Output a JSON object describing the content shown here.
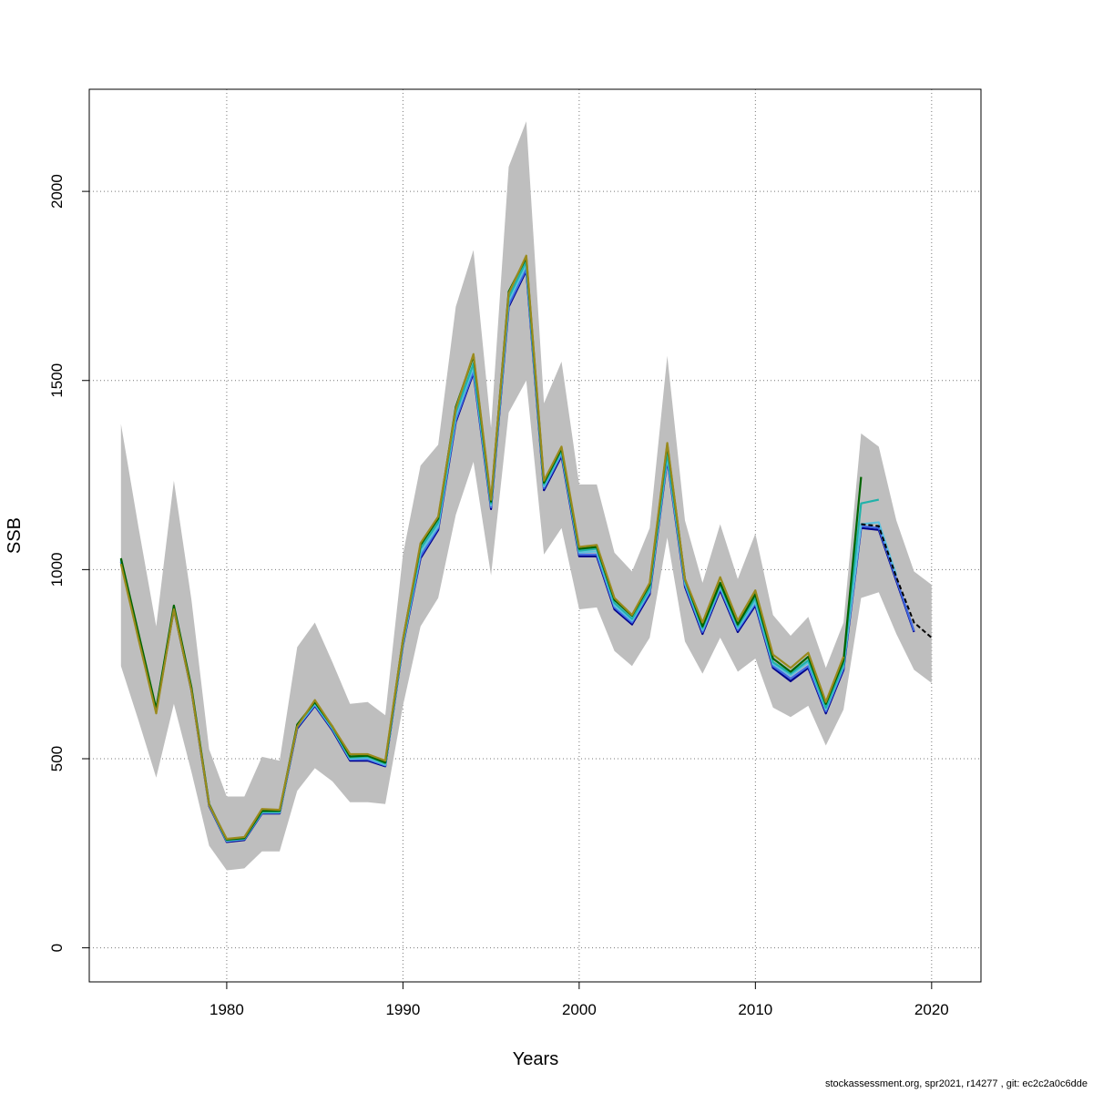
{
  "chart_data": {
    "type": "line",
    "xlabel": "Years",
    "ylabel": "SSB",
    "xlim": [
      1972.2,
      2022.8
    ],
    "ylim": [
      -90,
      2270
    ],
    "x_ticks": [
      1980,
      1990,
      2000,
      2010,
      2020
    ],
    "y_ticks": [
      0,
      500,
      1000,
      1500,
      2000
    ],
    "grid": true,
    "confidence_band": {
      "x": [
        1974,
        1975,
        1976,
        1977,
        1978,
        1979,
        1980,
        1981,
        1982,
        1983,
        1984,
        1985,
        1986,
        1987,
        1988,
        1989,
        1990,
        1991,
        1992,
        1993,
        1994,
        1995,
        1996,
        1997,
        1998,
        1999,
        2000,
        2001,
        2002,
        2003,
        2004,
        2005,
        2006,
        2007,
        2008,
        2009,
        2010,
        2011,
        2012,
        2013,
        2014,
        2015,
        2016,
        2017,
        2018,
        2019,
        2020
      ],
      "upper": [
        1385,
        1110,
        850,
        1235,
        920,
        525,
        400,
        400,
        505,
        495,
        795,
        860,
        755,
        645,
        650,
        615,
        1040,
        1275,
        1330,
        1695,
        1845,
        1375,
        2065,
        2185,
        1440,
        1550,
        1225,
        1225,
        1045,
        995,
        1110,
        1565,
        1130,
        965,
        1120,
        975,
        1095,
        880,
        825,
        875,
        740,
        860,
        1360,
        1325,
        1130,
        995,
        960
      ],
      "lower": [
        745,
        600,
        450,
        645,
        465,
        270,
        205,
        210,
        255,
        255,
        415,
        475,
        440,
        385,
        385,
        380,
        640,
        850,
        925,
        1145,
        1285,
        985,
        1415,
        1500,
        1040,
        1110,
        895,
        900,
        785,
        745,
        820,
        1085,
        810,
        725,
        820,
        730,
        765,
        635,
        610,
        640,
        535,
        630,
        925,
        940,
        830,
        735,
        700
      ]
    },
    "series": [
      {
        "color": "#00008b",
        "x": [
          1974,
          1975,
          1976,
          1977,
          1978,
          1979,
          1980,
          1981,
          1982,
          1983,
          1984,
          1985,
          1986,
          1987,
          1988,
          1989,
          1990,
          1991,
          1992,
          1993,
          1994,
          1995,
          1996,
          1997,
          1998,
          1999,
          2000,
          2001,
          2002,
          2003,
          2004,
          2005,
          2006,
          2007,
          2008,
          2009,
          2010,
          2011,
          2012,
          2013,
          2014,
          2015,
          2016,
          2017,
          2018,
          2019
        ],
        "values": [
          1020,
          820,
          625,
          895,
          680,
          375,
          280,
          285,
          355,
          355,
          580,
          640,
          575,
          495,
          495,
          480,
          800,
          1030,
          1105,
          1390,
          1520,
          1160,
          1695,
          1790,
          1210,
          1300,
          1035,
          1035,
          895,
          855,
          935,
          1290,
          955,
          830,
          945,
          835,
          905,
          740,
          705,
          740,
          620,
          735,
          1110,
          1105,
          970,
          835
        ]
      },
      {
        "color": "#4169e1",
        "x": [
          1974,
          1975,
          1976,
          1977,
          1978,
          1979,
          1980,
          1981,
          1982,
          1983,
          1984,
          1985,
          1986,
          1987,
          1988,
          1989,
          1990,
          1991,
          1992,
          1993,
          1994,
          1995,
          1996,
          1997,
          1998,
          1999,
          2000,
          2001,
          2002,
          2003,
          2004,
          2005,
          2006,
          2007,
          2008,
          2009,
          2010,
          2011,
          2012,
          2013,
          2014,
          2015,
          2016,
          2017,
          2018,
          2019
        ],
        "values": [
          1022,
          822,
          627,
          897,
          682,
          377,
          282,
          287,
          357,
          357,
          583,
          642,
          578,
          498,
          498,
          482,
          803,
          1035,
          1110,
          1395,
          1525,
          1165,
          1700,
          1795,
          1215,
          1305,
          1040,
          1040,
          900,
          860,
          940,
          1295,
          960,
          835,
          950,
          840,
          910,
          745,
          712,
          745,
          625,
          740,
          1115,
          1110,
          975,
          838
        ]
      },
      {
        "color": "#5bc0de",
        "x": [
          1974,
          1975,
          1976,
          1977,
          1978,
          1979,
          1980,
          1981,
          1982,
          1983,
          1984,
          1985,
          1986,
          1987,
          1988,
          1989,
          1990,
          1991,
          1992,
          1993,
          1994,
          1995,
          1996,
          1997,
          1998,
          1999,
          2000,
          2001,
          2002,
          2003,
          2004,
          2005,
          2006,
          2007,
          2008,
          2009,
          2010,
          2011,
          2012,
          2013,
          2014,
          2015,
          2016,
          2017,
          2018
        ],
        "values": [
          1025,
          825,
          628,
          900,
          684,
          378,
          283,
          288,
          358,
          358,
          585,
          645,
          580,
          500,
          502,
          484,
          806,
          1045,
          1115,
          1405,
          1535,
          1170,
          1710,
          1805,
          1220,
          1310,
          1045,
          1048,
          905,
          865,
          945,
          1300,
          965,
          840,
          955,
          845,
          915,
          750,
          720,
          755,
          630,
          745,
          1120,
          1125,
          985
        ]
      },
      {
        "color": "#20b2aa",
        "x": [
          1974,
          1975,
          1976,
          1977,
          1978,
          1979,
          1980,
          1981,
          1982,
          1983,
          1984,
          1985,
          1986,
          1987,
          1988,
          1989,
          1990,
          1991,
          1992,
          1993,
          1994,
          1995,
          1996,
          1997,
          1998,
          1999,
          2000,
          2001,
          2002,
          2003,
          2004,
          2005,
          2006,
          2007,
          2008,
          2009,
          2010,
          2011,
          2012,
          2013,
          2014,
          2015,
          2016,
          2017
        ],
        "values": [
          1027,
          827,
          630,
          902,
          686,
          379,
          285,
          289,
          360,
          360,
          588,
          648,
          582,
          503,
          505,
          487,
          810,
          1055,
          1125,
          1415,
          1545,
          1175,
          1720,
          1815,
          1225,
          1315,
          1050,
          1055,
          912,
          870,
          950,
          1310,
          970,
          845,
          960,
          850,
          925,
          755,
          725,
          760,
          635,
          750,
          1175,
          1185
        ]
      },
      {
        "color": "#006400",
        "x": [
          1974,
          1975,
          1976,
          1977,
          1978,
          1979,
          1980,
          1981,
          1982,
          1983,
          1984,
          1985,
          1986,
          1987,
          1988,
          1989,
          1990,
          1991,
          1992,
          1993,
          1994,
          1995,
          1996,
          1997,
          1998,
          1999,
          2000,
          2001,
          2002,
          2003,
          2004,
          2005,
          2006,
          2007,
          2008,
          2009,
          2010,
          2011,
          2012,
          2013,
          2014,
          2015,
          2016
        ],
        "values": [
          1030,
          830,
          632,
          905,
          688,
          380,
          286,
          290,
          362,
          362,
          590,
          650,
          585,
          506,
          508,
          490,
          815,
          1065,
          1135,
          1430,
          1565,
          1180,
          1735,
          1825,
          1230,
          1320,
          1055,
          1060,
          920,
          878,
          960,
          1330,
          975,
          850,
          965,
          855,
          935,
          765,
          730,
          770,
          645,
          760,
          1245
        ]
      },
      {
        "color": "#9a8a1c",
        "x": [
          1974,
          1975,
          1976,
          1977,
          1978,
          1979,
          1980,
          1981,
          1982,
          1983,
          1984,
          1985,
          1986,
          1987,
          1988,
          1989,
          1990,
          1991,
          1992,
          1993,
          1994,
          1995,
          1996,
          1997,
          1998,
          1999,
          2000,
          2001,
          2002,
          2003,
          2004,
          2005,
          2006,
          2007,
          2008,
          2009,
          2010,
          2011,
          2012,
          2013,
          2014,
          2015
        ],
        "values": [
          1015,
          815,
          620,
          895,
          680,
          378,
          288,
          293,
          367,
          365,
          585,
          655,
          585,
          512,
          512,
          495,
          815,
          1070,
          1140,
          1425,
          1570,
          1185,
          1730,
          1830,
          1235,
          1325,
          1060,
          1065,
          925,
          880,
          965,
          1335,
          975,
          860,
          980,
          865,
          945,
          775,
          740,
          780,
          650,
          770
        ]
      }
    ],
    "forecast": {
      "x": [
        2016,
        2017,
        2018,
        2019,
        2020
      ],
      "values": [
        1120,
        1115,
        980,
        860,
        820
      ]
    }
  },
  "footer": "stockassessment.org, spr2021, r14277 , git: ec2c2a0c6dde"
}
